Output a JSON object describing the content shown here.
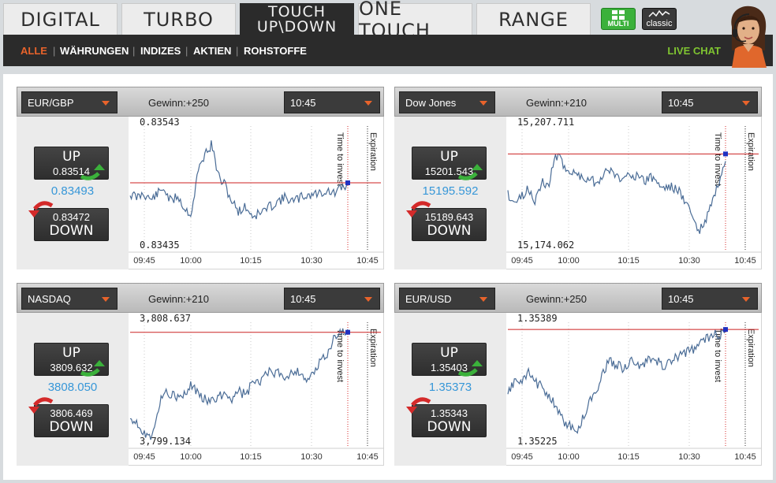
{
  "tabs": [
    "DIGITAL",
    "TURBO",
    "TOUCH",
    "UP\\DOWN",
    "ONE TOUCH",
    "RANGE"
  ],
  "mode_buttons": {
    "multi": "MULTI",
    "classic": "classic"
  },
  "subnav": [
    "ALLE",
    "WÄHRUNGEN",
    "INDIZES",
    "AKTIEN",
    "ROHSTOFFE"
  ],
  "live_chat": "LIVE CHAT",
  "colors": {
    "accent": "#e8632b",
    "up_green": "#3bb13b",
    "down_red": "#d42a2a",
    "mid_blue": "#3797d8",
    "live_chat": "#7fc431"
  },
  "time_labels": [
    "09:45",
    "10:00",
    "10:15",
    "10:30",
    "10:45"
  ],
  "marker_labels": {
    "invest": "Time to invest",
    "expiration": "Expiration"
  },
  "widgets": [
    {
      "asset": "EUR/GBP",
      "gewinn": "Gewinn:+250",
      "expiry": "10:45",
      "up_label": "UP",
      "up_value": "0.83514",
      "mid_value": "0.83493",
      "down_value": "0.83472",
      "down_label": "DOWN",
      "high": "0.83543",
      "low": "0.83435",
      "current_level": 0.83493,
      "chart_min": 0.83425,
      "chart_max": 0.8355,
      "seed": 11,
      "profile": [
        0.55,
        0.58,
        0.54,
        0.6,
        0.55,
        0.5,
        0.62,
        0.56,
        0.68,
        0.72,
        0.35,
        0.2,
        0.12,
        0.4,
        0.48,
        0.62,
        0.7,
        0.66,
        0.74,
        0.72,
        0.68,
        0.64,
        0.6,
        0.58,
        0.62,
        0.58,
        0.56,
        0.55,
        0.54,
        0.52,
        0.55,
        0.5,
        0.48
      ]
    },
    {
      "asset": "Dow Jones",
      "gewinn": "Gewinn:+210",
      "expiry": "10:45",
      "up_label": "UP",
      "up_value": "15201.543",
      "mid_value": "15195.592",
      "down_value": "15189.643",
      "down_label": "DOWN",
      "high": "15,207.711",
      "low": "15,174.062",
      "current_level": 15201.5,
      "chart_min": 15172.0,
      "chart_max": 15210.0,
      "seed": 23,
      "profile": [
        0.55,
        0.62,
        0.58,
        0.5,
        0.6,
        0.45,
        0.48,
        0.2,
        0.28,
        0.35,
        0.38,
        0.4,
        0.42,
        0.45,
        0.38,
        0.34,
        0.4,
        0.42,
        0.36,
        0.4,
        0.44,
        0.4,
        0.45,
        0.5,
        0.48,
        0.52,
        0.6,
        0.72,
        0.88,
        0.8,
        0.62,
        0.46,
        0.3
      ]
    },
    {
      "asset": "NASDAQ",
      "gewinn": "Gewinn:+210",
      "expiry": "10:45",
      "up_label": "UP",
      "up_value": "3809.632",
      "mid_value": "3808.050",
      "down_value": "3806.469",
      "down_label": "DOWN",
      "high": "3,808.637",
      "low": "3,799.134",
      "current_level": 3808.6,
      "chart_min": 3798.3,
      "chart_max": 3809.5,
      "seed": 37,
      "profile": [
        0.78,
        0.82,
        0.92,
        0.95,
        0.75,
        0.55,
        0.58,
        0.62,
        0.6,
        0.5,
        0.58,
        0.62,
        0.66,
        0.6,
        0.58,
        0.62,
        0.55,
        0.6,
        0.48,
        0.5,
        0.38,
        0.42,
        0.4,
        0.44,
        0.38,
        0.4,
        0.46,
        0.42,
        0.3,
        0.22,
        0.1,
        0.04,
        0.04
      ]
    },
    {
      "asset": "EUR/USD",
      "gewinn": "Gewinn:+250",
      "expiry": "10:45",
      "up_label": "UP",
      "up_value": "1.35403",
      "mid_value": "1.35373",
      "down_value": "1.35343",
      "down_label": "DOWN",
      "high": "1.35389",
      "low": "1.35225",
      "current_level": 1.35389,
      "chart_min": 1.3521,
      "chart_max": 1.354,
      "seed": 53,
      "profile": [
        0.6,
        0.45,
        0.5,
        0.4,
        0.48,
        0.52,
        0.58,
        0.7,
        0.8,
        0.86,
        0.92,
        0.8,
        0.65,
        0.55,
        0.38,
        0.3,
        0.32,
        0.36,
        0.3,
        0.34,
        0.32,
        0.28,
        0.3,
        0.34,
        0.3,
        0.26,
        0.22,
        0.2,
        0.16,
        0.1,
        0.08,
        0.06,
        0.06
      ]
    }
  ]
}
